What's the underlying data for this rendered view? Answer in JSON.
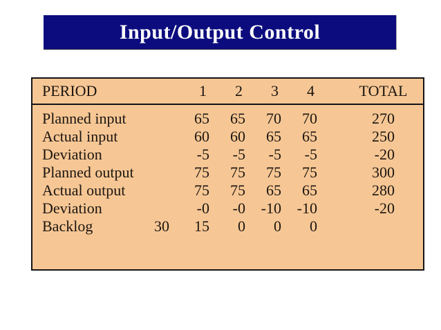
{
  "title": "Input/Output Control",
  "colors": {
    "banner_bg": "#0c0c7e",
    "banner_text": "#ffffff",
    "table_bg": "#f6c795",
    "table_border": "#141414",
    "text": "#1c1510",
    "page_bg": "#ffffff"
  },
  "table": {
    "header": {
      "label": "PERIOD",
      "p1": "1",
      "p2": "2",
      "p3": "3",
      "p4": "4",
      "total": "TOTAL"
    },
    "rows": [
      {
        "label": "Planned input",
        "pre": "",
        "values": [
          "65",
          "65",
          "70",
          "70"
        ],
        "total": "270"
      },
      {
        "label": "Actual input",
        "pre": "",
        "values": [
          "60",
          "60",
          "65",
          "65"
        ],
        "total": "250"
      },
      {
        "label": "Deviation",
        "pre": "",
        "values": [
          "-5",
          "-5",
          "-5",
          "-5"
        ],
        "total": "-20"
      },
      {
        "label": "Planned output",
        "pre": "",
        "values": [
          "75",
          "75",
          "75",
          "75"
        ],
        "total": "300"
      },
      {
        "label": "Actual output",
        "pre": "",
        "values": [
          "75",
          "75",
          "65",
          "65"
        ],
        "total": "280"
      },
      {
        "label": "Deviation",
        "pre": "",
        "values": [
          "-0",
          "-0",
          "-10",
          "-10"
        ],
        "total": "-20"
      },
      {
        "label": "Backlog",
        "pre": "30",
        "values": [
          "15",
          "0",
          "0",
          "0"
        ],
        "total": ""
      }
    ]
  }
}
